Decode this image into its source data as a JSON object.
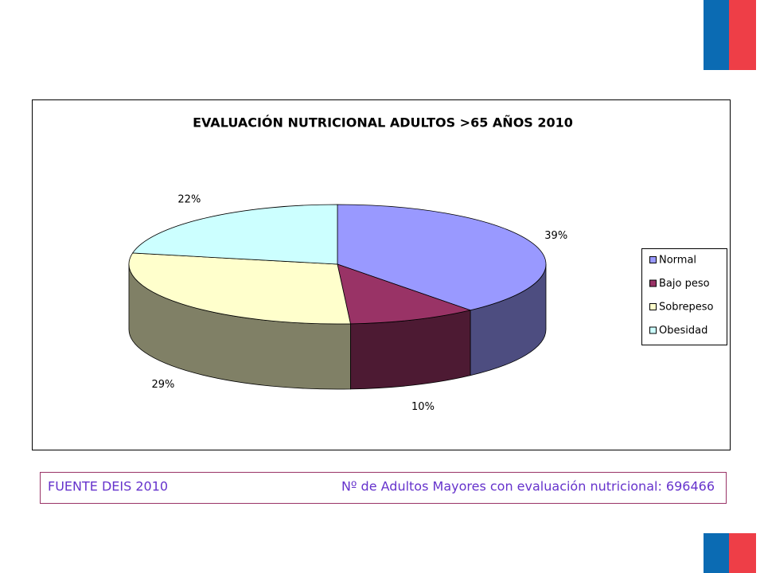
{
  "chart_data": {
    "type": "pie",
    "title": "EVALUACIÓN NUTRICIONAL ADULTOS >65 AÑOS 2010",
    "categories": [
      "Normal",
      "Bajo peso",
      "Sobrepeso",
      "Obesidad"
    ],
    "values": [
      39,
      10,
      29,
      22
    ],
    "value_labels": [
      "39%",
      "10%",
      "29%",
      "22%"
    ],
    "colors": [
      "#9999ff",
      "#993366",
      "#ffffcc",
      "#ccffff"
    ],
    "legend": "right"
  },
  "footer": {
    "source": "FUENTE DEIS 2010",
    "note": "Nº de Adultos Mayores con evaluación nutricional: 696466"
  }
}
